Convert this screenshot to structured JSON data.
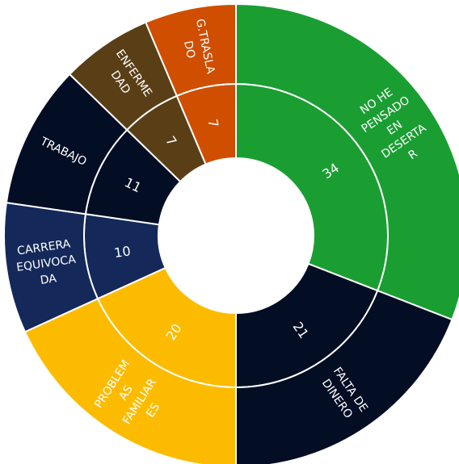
{
  "chart_data": {
    "type": "sunburst",
    "title": "",
    "categories": [
      "NO HE PENSADO EN DESERTAR",
      "FALTA DE DINERO",
      "PROBLEMAS FAMILIARES",
      "CARRERA EQUIVOCADA",
      "TRABAJO",
      "ENFERMEDAD",
      "G.TRASLADO"
    ],
    "values": [
      34,
      21,
      20,
      10,
      11,
      7,
      7
    ],
    "ring_labels": [
      [
        "NO HE",
        "PENSADO",
        "EN",
        "DESERTA",
        "R"
      ],
      [
        "FALTA DE",
        "DINERO"
      ],
      [
        "PROBLEM",
        "AS",
        "FAMILIAR",
        "ES"
      ],
      [
        "CARRERA",
        "EQUIVOCA",
        "DA"
      ],
      [
        "TRABAJO"
      ],
      [
        "ENFERME",
        "DAD"
      ],
      [
        "G.TRASLA",
        "DO"
      ]
    ],
    "colors": [
      "#1a9e32",
      "#030d24",
      "#fdbb00",
      "#14295a",
      "#030d24",
      "#5a3f16",
      "#cf4e00"
    ],
    "legend": "none"
  }
}
